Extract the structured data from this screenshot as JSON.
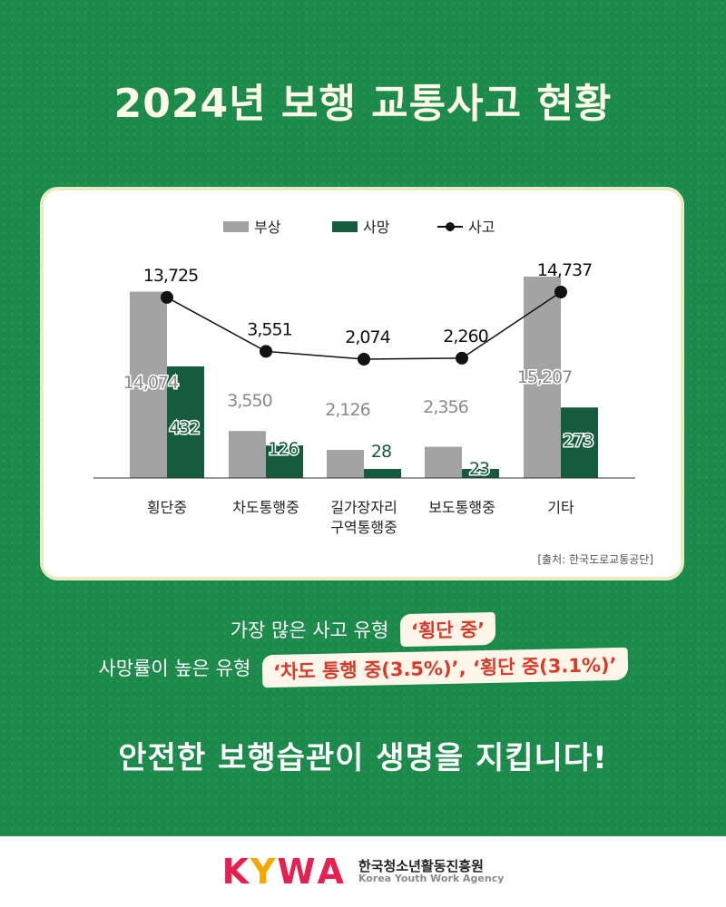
{
  "title": "2024년 보행 교통사고 현황",
  "chart_data": {
    "type": "bar",
    "categories": [
      [
        "횡단중"
      ],
      [
        "차도통행중"
      ],
      [
        "길가장자리",
        "구역통행중"
      ],
      [
        "보도통행중"
      ],
      [
        "기타"
      ]
    ],
    "series": [
      {
        "name": "부상",
        "type": "bar",
        "color": "#a3a3a3",
        "values": [
          14074,
          3550,
          2126,
          2356,
          15207
        ],
        "labels": [
          "14,074",
          "3,550",
          "2,126",
          "2,356",
          "15,207"
        ]
      },
      {
        "name": "사망",
        "type": "bar",
        "color": "#155c3e",
        "values": [
          432,
          126,
          28,
          23,
          273
        ],
        "labels": [
          "432",
          "126",
          "28",
          "23",
          "273"
        ]
      },
      {
        "name": "사고",
        "type": "line",
        "color": "#111111",
        "values": [
          13725,
          3551,
          2074,
          2260,
          14737
        ],
        "labels": [
          "13,725",
          "3,551",
          "2,074",
          "2,260",
          "14,737"
        ]
      }
    ],
    "legend": "top-center",
    "grid": false
  },
  "source": "[출처: 한국도로교통공단]",
  "info": {
    "line1_text": "가장 많은 사고 유형",
    "line1_highlight": "‘횡단 중’",
    "line2_text": "사망률이 높은 유형",
    "line2_highlight": "‘차도 통행 중(3.5%)’, ‘횡단 중(3.1%)’"
  },
  "slogan": "안전한 보행습관이 생명을 지킵니다!",
  "footer": {
    "logo": [
      "K",
      "Y",
      "W",
      "A"
    ],
    "logo_colors": [
      "#e6214f",
      "#f2a900",
      "#e6214f",
      "#e6214f"
    ],
    "org_ko": "한국청소년활동진흥원",
    "org_en": "Korea Youth Work Agency"
  }
}
